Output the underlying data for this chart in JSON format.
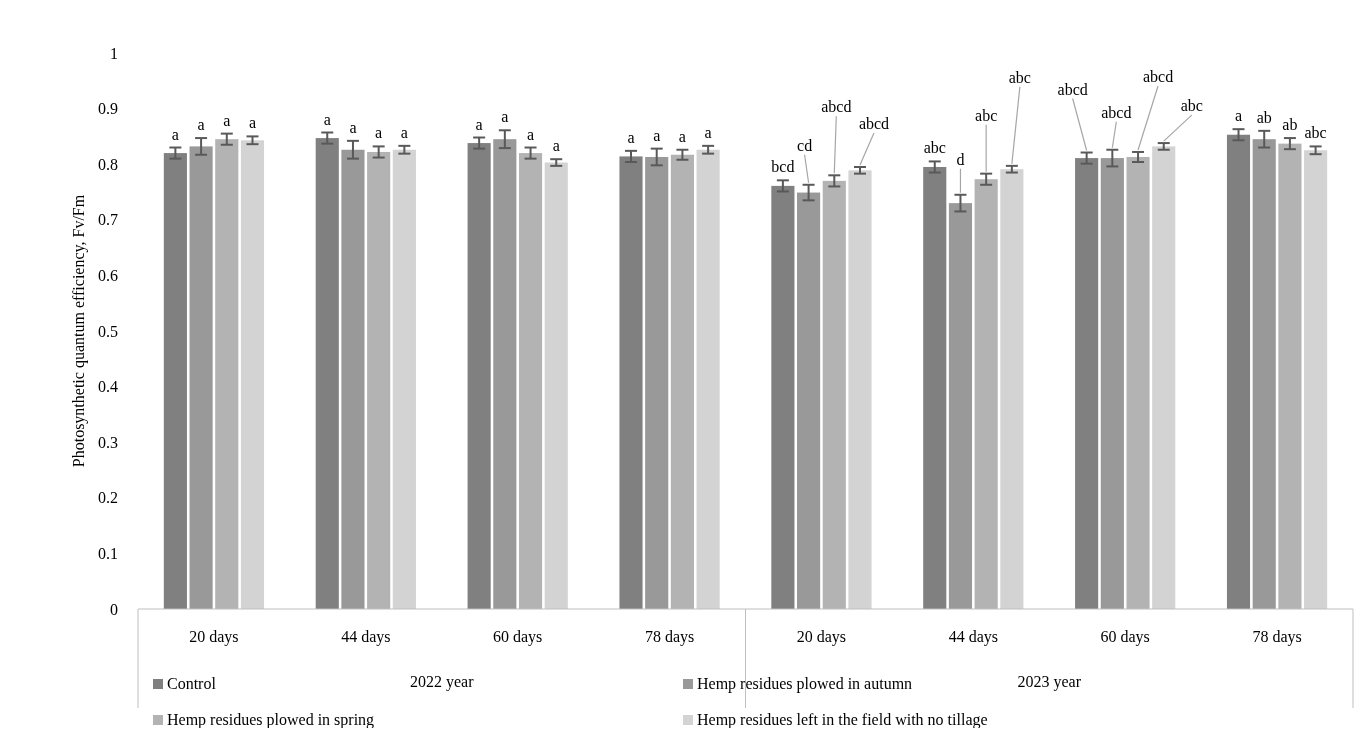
{
  "chart_data": {
    "type": "bar",
    "ylabel": "Photosynthetic quantum efficiency, Fv/Fm",
    "categories": [
      "20 days",
      "44 days",
      "60 days",
      "78 days",
      "20 days",
      "44 days",
      "60 days",
      "78 days"
    ],
    "annotations": [
      "2022 year",
      "2023 year"
    ],
    "ylim": [
      0,
      1
    ],
    "yticks": [
      0,
      0.1,
      0.2,
      0.3,
      0.4,
      0.5,
      0.6,
      0.7,
      0.8,
      0.9,
      1
    ],
    "grid": false,
    "legend": "bottom",
    "series": [
      {
        "name": "Control",
        "color": "#808080",
        "values": [
          0.82,
          0.847,
          0.838,
          0.814,
          0.761,
          0.795,
          0.811,
          0.853
        ],
        "errors": [
          0.01,
          0.01,
          0.01,
          0.01,
          0.01,
          0.01,
          0.01,
          0.01
        ],
        "value_labels": [
          "a",
          "a",
          "a",
          "a",
          "bcd",
          "abc",
          "abcd",
          "a"
        ]
      },
      {
        "name": "Hemp residues plowed in autumn",
        "color": "#999999",
        "values": [
          0.832,
          0.826,
          0.845,
          0.813,
          0.749,
          0.73,
          0.811,
          0.845
        ],
        "errors": [
          0.015,
          0.016,
          0.016,
          0.015,
          0.014,
          0.015,
          0.015,
          0.015
        ],
        "value_labels": [
          "a",
          "a",
          "a",
          "a",
          "cd",
          "d",
          "abcd",
          "ab"
        ]
      },
      {
        "name": "Hemp residues plowed in spring",
        "color": "#b3b3b3",
        "values": [
          0.845,
          0.822,
          0.82,
          0.817,
          0.77,
          0.773,
          0.813,
          0.837
        ],
        "errors": [
          0.01,
          0.01,
          0.01,
          0.009,
          0.01,
          0.01,
          0.009,
          0.01
        ],
        "value_labels": [
          "a",
          "a",
          "a",
          "a",
          "abcd",
          "abc",
          "abcd",
          "ab"
        ]
      },
      {
        "name": "Hemp residues left in the field with no tillage",
        "color": "#d3d3d3",
        "values": [
          0.843,
          0.826,
          0.803,
          0.826,
          0.789,
          0.791,
          0.832,
          0.825
        ],
        "errors": [
          0.007,
          0.007,
          0.006,
          0.007,
          0.006,
          0.006,
          0.006,
          0.007
        ],
        "value_labels": [
          "a",
          "a",
          "a",
          "a",
          "abcd",
          "abc",
          "abc",
          "abc"
        ]
      }
    ]
  }
}
